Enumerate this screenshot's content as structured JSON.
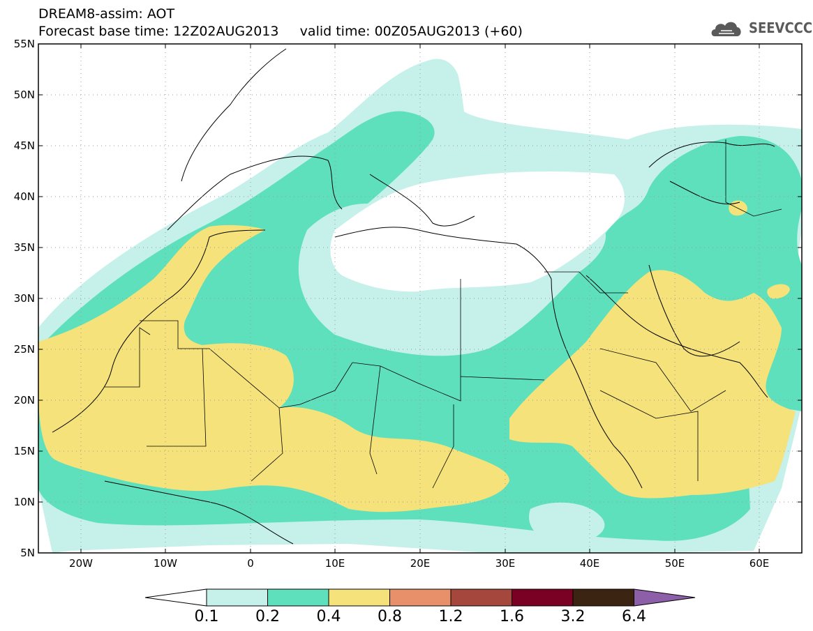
{
  "title": {
    "line1": "DREAM8-assim: AOT",
    "line2": "Forecast base time: 12Z02AUG2013     valid time: 00Z05AUG2013 (+60)"
  },
  "logo": {
    "text": "SEEVCCC",
    "icon": "cloud-logo-icon"
  },
  "map": {
    "lat_labels": [
      "55N",
      "50N",
      "45N",
      "40N",
      "35N",
      "30N",
      "25N",
      "20N",
      "15N",
      "10N",
      "5N"
    ],
    "lon_labels": [
      "20W",
      "10W",
      "0",
      "10E",
      "20E",
      "30E",
      "40E",
      "50E",
      "60E"
    ]
  },
  "colorbar": {
    "labels": [
      "0.1",
      "0.2",
      "0.4",
      "0.8",
      "1.2",
      "1.6",
      "3.2",
      "6.4"
    ],
    "colors": [
      "#ffffff",
      "#c6f0ea",
      "#5ee0bd",
      "#f5e27a",
      "#e8906a",
      "#a6473d",
      "#7a0024",
      "#3b2512",
      "#8d5fa8"
    ]
  }
}
